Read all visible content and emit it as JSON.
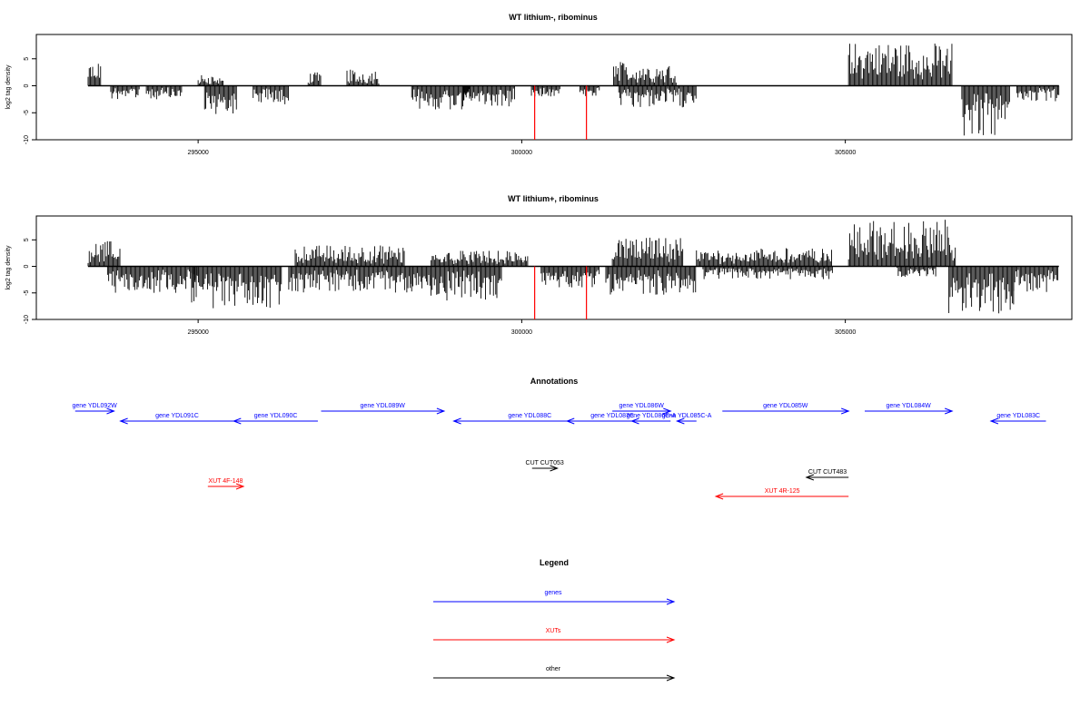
{
  "chart_data": [
    {
      "type": "bar",
      "title": "WT lithium-, ribominus",
      "ylabel": "log2 tag density",
      "xlabel": "",
      "xlim": [
        292500,
        308500
      ],
      "ylim": [
        -10,
        9.5
      ],
      "xticks": [
        295000,
        300000,
        305000
      ],
      "yticks": [
        -10,
        -5,
        0,
        5
      ],
      "grid": false,
      "series": [
        {
          "values": [],
          "segments": [
            {
              "from": 293300,
              "to": 293500,
              "strand": "+",
              "max": 4.5
            },
            {
              "from": 293650,
              "to": 294100,
              "strand": "-",
              "max": 2.5
            },
            {
              "from": 294200,
              "to": 294750,
              "strand": "-",
              "max": 2.5
            },
            {
              "from": 295000,
              "to": 295400,
              "strand": "+",
              "max": 2.0
            },
            {
              "from": 295100,
              "to": 295600,
              "strand": "-",
              "max": 5.5
            },
            {
              "from": 295850,
              "to": 296400,
              "strand": "-",
              "max": 3.5
            },
            {
              "from": 296700,
              "to": 296900,
              "strand": "+",
              "max": 2.5
            },
            {
              "from": 297300,
              "to": 297800,
              "strand": "+",
              "max": 3.0
            },
            {
              "from": 298300,
              "to": 299200,
              "strand": "-",
              "max": 4.5
            },
            {
              "from": 299100,
              "to": 299900,
              "strand": "-",
              "max": 4.0
            },
            {
              "from": 300150,
              "to": 300600,
              "strand": "-",
              "max": 2.0
            },
            {
              "from": 300900,
              "to": 301200,
              "strand": "-",
              "max": 2.0
            },
            {
              "from": 301420,
              "to": 302400,
              "strand": "+",
              "max": 4.5
            },
            {
              "from": 301500,
              "to": 302700,
              "strand": "-",
              "max": 4.0
            },
            {
              "from": 305050,
              "to": 306650,
              "strand": "+",
              "max": 8.0
            },
            {
              "from": 306800,
              "to": 307550,
              "strand": "-",
              "max": 9.5
            },
            {
              "from": 307650,
              "to": 308300,
              "strand": "-",
              "max": 3.0
            }
          ],
          "marks": [
            {
              "x": 300200,
              "value": -10,
              "color": "#ff0000"
            },
            {
              "x": 301000,
              "value": -10,
              "color": "#ff0000"
            }
          ]
        }
      ]
    },
    {
      "type": "bar",
      "title": "WT lithium+, ribominus",
      "ylabel": "log2 tag density",
      "xlabel": "",
      "xlim": [
        292500,
        308500
      ],
      "ylim": [
        -10,
        9.5
      ],
      "xticks": [
        295000,
        300000,
        305000
      ],
      "yticks": [
        -10,
        -5,
        0,
        5
      ],
      "grid": false,
      "series": [
        {
          "values": [],
          "segments": [
            {
              "from": 293300,
              "to": 293800,
              "strand": "+",
              "max": 4.8
            },
            {
              "from": 293600,
              "to": 295000,
              "strand": "-",
              "max": 5.0
            },
            {
              "from": 294900,
              "to": 296300,
              "strand": "-",
              "max": 8.0
            },
            {
              "from": 296500,
              "to": 298200,
              "strand": "+",
              "max": 4.0
            },
            {
              "from": 296400,
              "to": 298300,
              "strand": "-",
              "max": 5.0
            },
            {
              "from": 298300,
              "to": 299700,
              "strand": "-",
              "max": 6.5
            },
            {
              "from": 298600,
              "to": 300100,
              "strand": "+",
              "max": 3.0
            },
            {
              "from": 300300,
              "to": 301200,
              "strand": "-",
              "max": 4.0
            },
            {
              "from": 301400,
              "to": 302500,
              "strand": "+",
              "max": 5.5
            },
            {
              "from": 301300,
              "to": 302700,
              "strand": "-",
              "max": 5.5
            },
            {
              "from": 302700,
              "to": 304800,
              "strand": "+",
              "max": 3.5
            },
            {
              "from": 302800,
              "to": 304800,
              "strand": "-",
              "max": 2.5
            },
            {
              "from": 305050,
              "to": 306700,
              "strand": "+",
              "max": 8.8
            },
            {
              "from": 305800,
              "to": 306400,
              "strand": "-",
              "max": 2.0
            },
            {
              "from": 306600,
              "to": 307600,
              "strand": "-",
              "max": 9.0
            },
            {
              "from": 307600,
              "to": 308300,
              "strand": "-",
              "max": 5.0
            }
          ],
          "marks": [
            {
              "x": 300200,
              "value": -10,
              "color": "#ff0000"
            },
            {
              "x": 301000,
              "value": -10,
              "color": "#ff0000"
            }
          ]
        }
      ]
    }
  ],
  "annotations": {
    "title": "Annotations",
    "genes_color": "#0000ff",
    "xuts_color": "#ff0000",
    "other_color": "#000000",
    "features": [
      {
        "label": "gene YDL092W",
        "start": 293100,
        "end": 293700,
        "strand": "+",
        "type": "gene",
        "row": 0
      },
      {
        "label": "gene YDL091C",
        "start": 293800,
        "end": 295550,
        "strand": "-",
        "type": "gene",
        "row": 1
      },
      {
        "label": "gene YDL090C",
        "start": 295550,
        "end": 296850,
        "strand": "-",
        "type": "gene",
        "row": 1
      },
      {
        "label": "gene YDL089W",
        "start": 296900,
        "end": 298800,
        "strand": "+",
        "type": "gene",
        "row": 0
      },
      {
        "label": "gene YDL088C",
        "start": 298950,
        "end": 301300,
        "strand": "-",
        "type": "gene",
        "row": 1
      },
      {
        "label": "gene YDL087C",
        "start": 300700,
        "end": 302100,
        "strand": "-",
        "type": "gene",
        "row": 1
      },
      {
        "label": "gene YDL086W",
        "start": 301400,
        "end": 302300,
        "strand": "+",
        "type": "gene",
        "row": 0
      },
      {
        "label": "gene YDL086C-A",
        "start": 301700,
        "end": 302300,
        "strand": "-",
        "type": "gene",
        "row": 1
      },
      {
        "label": "gene YDL085C-A",
        "start": 302400,
        "end": 302700,
        "strand": "-",
        "type": "gene",
        "row": 1
      },
      {
        "label": "gene YDL085W",
        "start": 303100,
        "end": 305050,
        "strand": "+",
        "type": "gene",
        "row": 0
      },
      {
        "label": "gene YDL084W",
        "start": 305300,
        "end": 306650,
        "strand": "+",
        "type": "gene",
        "row": 0
      },
      {
        "label": "gene YDL083C",
        "start": 307250,
        "end": 308100,
        "strand": "-",
        "type": "gene",
        "row": 1
      },
      {
        "label": "CUT CUT053",
        "start": 300160,
        "end": 300550,
        "strand": "+",
        "type": "other",
        "row": 2
      },
      {
        "label": "CUT CUT483",
        "start": 304400,
        "end": 305050,
        "strand": "-",
        "type": "other",
        "row": 3
      },
      {
        "label": "XUT 4F-148",
        "start": 295150,
        "end": 295700,
        "strand": "+",
        "type": "xut",
        "row": 4
      },
      {
        "label": "XUT 4R-125",
        "start": 303000,
        "end": 305050,
        "strand": "-",
        "type": "xut",
        "row": 5
      }
    ]
  },
  "legend": {
    "title": "Legend",
    "items": [
      {
        "label": "genes",
        "color": "#0000ff"
      },
      {
        "label": "XUTs",
        "color": "#ff0000"
      },
      {
        "label": "other",
        "color": "#000000"
      }
    ]
  }
}
